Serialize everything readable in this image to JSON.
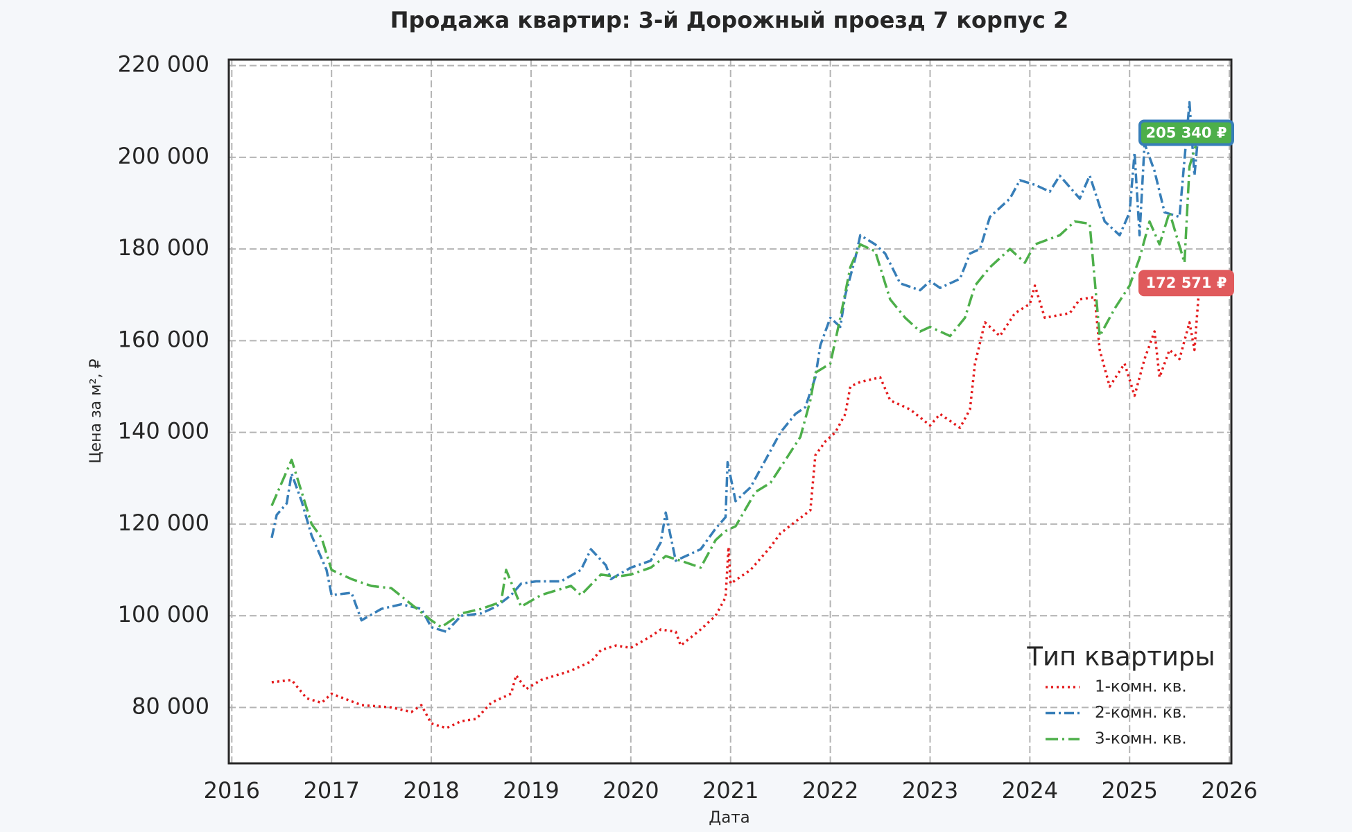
{
  "chart_data": {
    "type": "line",
    "title": "Продажа квартир: 3-й Дорожный проезд 7 корпус 2",
    "x_label": "Дата",
    "y_label": "Цена за м², ₽",
    "xlim": [
      2015.97,
      2026.02
    ],
    "xticks": [
      2016,
      2017,
      2018,
      2019,
      2020,
      2021,
      2022,
      2023,
      2024,
      2025,
      2026
    ],
    "ylim": [
      67800,
      221300
    ],
    "yticks": [
      {
        "value": 80000,
        "label": "80 000"
      },
      {
        "value": 100000,
        "label": "100 000"
      },
      {
        "value": 120000,
        "label": "120 000"
      },
      {
        "value": 140000,
        "label": "140 000"
      },
      {
        "value": 160000,
        "label": "160 000"
      },
      {
        "value": 180000,
        "label": "180 000"
      },
      {
        "value": 200000,
        "label": "200 000"
      },
      {
        "value": 220000,
        "label": "220 000"
      }
    ],
    "grid": true,
    "legend_title": "Тип квартиры",
    "legend_position": "lower right",
    "series": [
      {
        "name": "1-комн. кв.",
        "color": "#e41a1c",
        "linestyle": "dotted",
        "x": [
          2016.4,
          2016.6,
          2016.75,
          2016.9,
          2017.0,
          2017.3,
          2017.6,
          2017.8,
          2017.9,
          2018.0,
          2018.15,
          2018.3,
          2018.45,
          2018.6,
          2018.8,
          2018.85,
          2018.95,
          2019.1,
          2019.4,
          2019.6,
          2019.7,
          2019.85,
          2020.0,
          2020.2,
          2020.3,
          2020.45,
          2020.5,
          2020.7,
          2020.85,
          2020.95,
          2020.98,
          2021.0,
          2021.2,
          2021.4,
          2021.5,
          2021.65,
          2021.8,
          2021.85,
          2021.95,
          2022.05,
          2022.15,
          2022.2,
          2022.3,
          2022.5,
          2022.6,
          2022.8,
          2023.0,
          2023.1,
          2023.3,
          2023.4,
          2023.45,
          2023.55,
          2023.7,
          2023.85,
          2024.0,
          2024.05,
          2024.15,
          2024.4,
          2024.5,
          2024.65,
          2024.7,
          2024.8,
          2024.95,
          2025.05,
          2025.15,
          2025.25,
          2025.3,
          2025.4,
          2025.5,
          2025.6,
          2025.65,
          2025.7
        ],
        "values": [
          85500,
          86000,
          82000,
          81000,
          83000,
          80500,
          80000,
          79000,
          80500,
          76500,
          75500,
          77000,
          77500,
          81000,
          83000,
          87000,
          84000,
          86000,
          88000,
          90000,
          92500,
          93500,
          93000,
          95500,
          97000,
          96500,
          93500,
          97000,
          100000,
          104000,
          115000,
          107000,
          110000,
          115000,
          118000,
          120500,
          123000,
          135000,
          138000,
          140000,
          144000,
          150000,
          151000,
          152000,
          147000,
          145000,
          141500,
          144000,
          141000,
          145000,
          155000,
          164000,
          161000,
          166000,
          168000,
          172000,
          165000,
          166000,
          169000,
          169500,
          158000,
          150000,
          155000,
          148000,
          156000,
          162000,
          152000,
          158000,
          156000,
          164000,
          158000,
          172571
        ]
      },
      {
        "name": "2-комн. кв.",
        "color": "#377eb8",
        "linestyle": "dashdot",
        "x": [
          2016.4,
          2016.45,
          2016.55,
          2016.6,
          2016.7,
          2016.8,
          2016.95,
          2017.0,
          2017.2,
          2017.3,
          2017.5,
          2017.7,
          2017.9,
          2018.0,
          2018.15,
          2018.3,
          2018.5,
          2018.65,
          2018.8,
          2018.9,
          2019.05,
          2019.3,
          2019.5,
          2019.6,
          2019.75,
          2019.8,
          2020.0,
          2020.2,
          2020.3,
          2020.35,
          2020.45,
          2020.7,
          2020.85,
          2020.95,
          2020.97,
          2021.05,
          2021.2,
          2021.35,
          2021.5,
          2021.65,
          2021.75,
          2021.85,
          2021.9,
          2022.0,
          2022.1,
          2022.15,
          2022.25,
          2022.3,
          2022.45,
          2022.55,
          2022.7,
          2022.9,
          2023.0,
          2023.1,
          2023.3,
          2023.4,
          2023.5,
          2023.6,
          2023.8,
          2023.9,
          2024.05,
          2024.2,
          2024.3,
          2024.5,
          2024.6,
          2024.75,
          2024.9,
          2025.0,
          2025.05,
          2025.1,
          2025.15,
          2025.25,
          2025.35,
          2025.5,
          2025.6,
          2025.65,
          2025.7
        ],
        "values": [
          117000,
          122000,
          124500,
          131000,
          125000,
          117500,
          110000,
          104500,
          105000,
          99000,
          101500,
          102500,
          101500,
          97500,
          96500,
          100000,
          100500,
          102000,
          104500,
          107000,
          107500,
          107500,
          110000,
          114500,
          111000,
          108000,
          110500,
          112000,
          116000,
          122500,
          112000,
          114500,
          119000,
          121500,
          133500,
          125000,
          128000,
          134000,
          140000,
          144000,
          145500,
          152000,
          159000,
          165000,
          163000,
          170000,
          178000,
          183000,
          181000,
          179000,
          172500,
          171000,
          173000,
          171500,
          173500,
          179000,
          180000,
          187000,
          191000,
          195000,
          194000,
          192500,
          196000,
          191000,
          196000,
          186000,
          183000,
          188000,
          201000,
          183000,
          203000,
          197000,
          188000,
          187000,
          212000,
          196000,
          208000
        ]
      },
      {
        "name": "3-комн. кв.",
        "color": "#4daf4a",
        "linestyle": "dashdotdot",
        "x": [
          2016.4,
          2016.5,
          2016.6,
          2016.7,
          2016.8,
          2016.9,
          2017.0,
          2017.2,
          2017.4,
          2017.6,
          2017.8,
          2018.0,
          2018.1,
          2018.3,
          2018.5,
          2018.7,
          2018.75,
          2018.9,
          2019.1,
          2019.4,
          2019.5,
          2019.7,
          2019.85,
          2020.0,
          2020.2,
          2020.35,
          2020.5,
          2020.7,
          2020.85,
          2020.95,
          2021.05,
          2021.25,
          2021.4,
          2021.55,
          2021.7,
          2021.8,
          2021.85,
          2022.0,
          2022.1,
          2022.2,
          2022.3,
          2022.45,
          2022.6,
          2022.75,
          2022.9,
          2023.0,
          2023.2,
          2023.35,
          2023.45,
          2023.6,
          2023.8,
          2023.95,
          2024.05,
          2024.3,
          2024.45,
          2024.6,
          2024.7,
          2024.85,
          2025.0,
          2025.1,
          2025.2,
          2025.3,
          2025.4,
          2025.55,
          2025.6,
          2025.7
        ],
        "values": [
          124000,
          129000,
          134000,
          127000,
          120000,
          117000,
          110000,
          108000,
          106500,
          106000,
          102500,
          99000,
          97500,
          100500,
          101500,
          103000,
          110000,
          102000,
          104500,
          106500,
          104500,
          109000,
          108500,
          109000,
          110500,
          113000,
          112000,
          110500,
          116500,
          118500,
          119500,
          127000,
          129000,
          134000,
          139000,
          147000,
          153000,
          155000,
          165000,
          176000,
          181000,
          179500,
          169000,
          165000,
          162000,
          163000,
          161000,
          165000,
          172000,
          176000,
          180000,
          177000,
          181000,
          183000,
          186000,
          185500,
          161000,
          167000,
          172000,
          178000,
          186000,
          181000,
          188000,
          177000,
          198000,
          205340
        ]
      }
    ],
    "annotations": [
      {
        "text": "205 340 ₽",
        "value": 205340,
        "color": "#4daf4a",
        "edgecolor": "#377eb8"
      },
      {
        "text": "172 571 ₽",
        "value": 172571,
        "color": "#e05a5c",
        "edgecolor": "#e05a5c"
      }
    ]
  }
}
